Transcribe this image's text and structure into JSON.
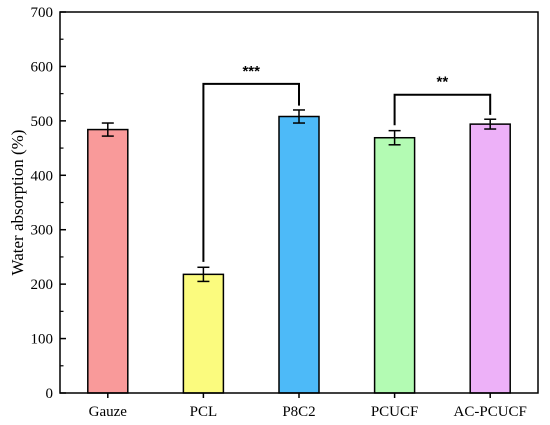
{
  "chart_data": {
    "type": "bar",
    "title": "",
    "xlabel": "",
    "ylabel": "Water absorption (%)",
    "ylim": [
      0,
      700
    ],
    "yticks": [
      "0",
      "100",
      "200",
      "300",
      "400",
      "500",
      "600",
      "700"
    ],
    "grid": false,
    "legend": "none",
    "categories": [
      "Gauze",
      "PCL",
      "P8C2",
      "PCUCF",
      "AC-PCUCF"
    ],
    "values": [
      484,
      218,
      508,
      469,
      494
    ],
    "errors": [
      12,
      13,
      12,
      13,
      9
    ],
    "colors": [
      "#F99A9A",
      "#FBFB7E",
      "#4DBAF8",
      "#B3FBB3",
      "#EDB1F8"
    ],
    "significance": [
      {
        "from": "PCL",
        "to": "P8C2",
        "label": "***",
        "y": 568
      },
      {
        "from": "PCUCF",
        "to": "AC-PCUCF",
        "label": "**",
        "y": 548
      }
    ]
  }
}
